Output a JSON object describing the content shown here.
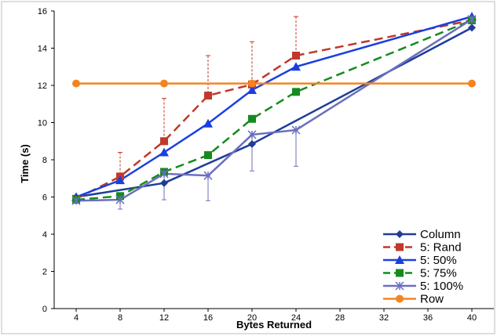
{
  "chart_data": {
    "type": "line",
    "title": "",
    "xlabel": "Bytes Returned",
    "ylabel": "Time (s)",
    "xlim": [
      2,
      42
    ],
    "ylim": [
      0,
      16
    ],
    "x_ticks": [
      4,
      8,
      12,
      16,
      20,
      24,
      28,
      32,
      36,
      40
    ],
    "y_ticks": [
      0,
      2,
      4,
      6,
      8,
      10,
      12,
      14,
      16
    ],
    "grid": false,
    "legend_position": "bottom-right",
    "series": [
      {
        "name": "Column",
        "color": "#1f3d99",
        "marker": "diamond",
        "dash": "solid",
        "x": [
          4,
          12,
          20,
          40
        ],
        "y": [
          6.0,
          6.75,
          8.85,
          15.1
        ]
      },
      {
        "name": "5: Rand",
        "color": "#c0392b",
        "marker": "square",
        "dash": "dashed",
        "x": [
          4,
          8,
          12,
          16,
          20,
          24,
          40
        ],
        "y": [
          5.9,
          7.1,
          9.0,
          11.45,
          12.05,
          13.6,
          15.5
        ],
        "err_plus": [
          0,
          1.3,
          2.3,
          2.15,
          2.3,
          2.1,
          0
        ],
        "err_minus": [
          0,
          0,
          0,
          0,
          0,
          0,
          0
        ]
      },
      {
        "name": "5: 50%",
        "color": "#1a3fe0",
        "marker": "triangle",
        "dash": "solid",
        "x": [
          4,
          8,
          12,
          16,
          20,
          24,
          40
        ],
        "y": [
          6.0,
          6.9,
          8.4,
          9.95,
          11.75,
          13.0,
          15.7
        ]
      },
      {
        "name": "5: 75%",
        "color": "#168a1f",
        "marker": "square",
        "dash": "dashed",
        "x": [
          4,
          8,
          12,
          16,
          20,
          24,
          40
        ],
        "y": [
          5.85,
          6.05,
          7.35,
          8.25,
          10.2,
          11.65,
          15.5
        ]
      },
      {
        "name": "5: 100%",
        "color": "#6b6fbf",
        "marker": "star",
        "dash": "solid",
        "x": [
          4,
          8,
          12,
          16,
          20,
          24,
          40
        ],
        "y": [
          5.8,
          5.85,
          7.25,
          7.15,
          9.35,
          9.6,
          15.55
        ],
        "err_plus": [
          0,
          0,
          0,
          0,
          0,
          0,
          0
        ],
        "err_minus": [
          0,
          0.5,
          1.4,
          1.35,
          1.95,
          1.95,
          0
        ]
      },
      {
        "name": "Row",
        "color": "#f5841f",
        "marker": "circle",
        "dash": "solid",
        "x": [
          4,
          12,
          20,
          40
        ],
        "y": [
          12.1,
          12.1,
          12.1,
          12.1
        ]
      }
    ]
  }
}
